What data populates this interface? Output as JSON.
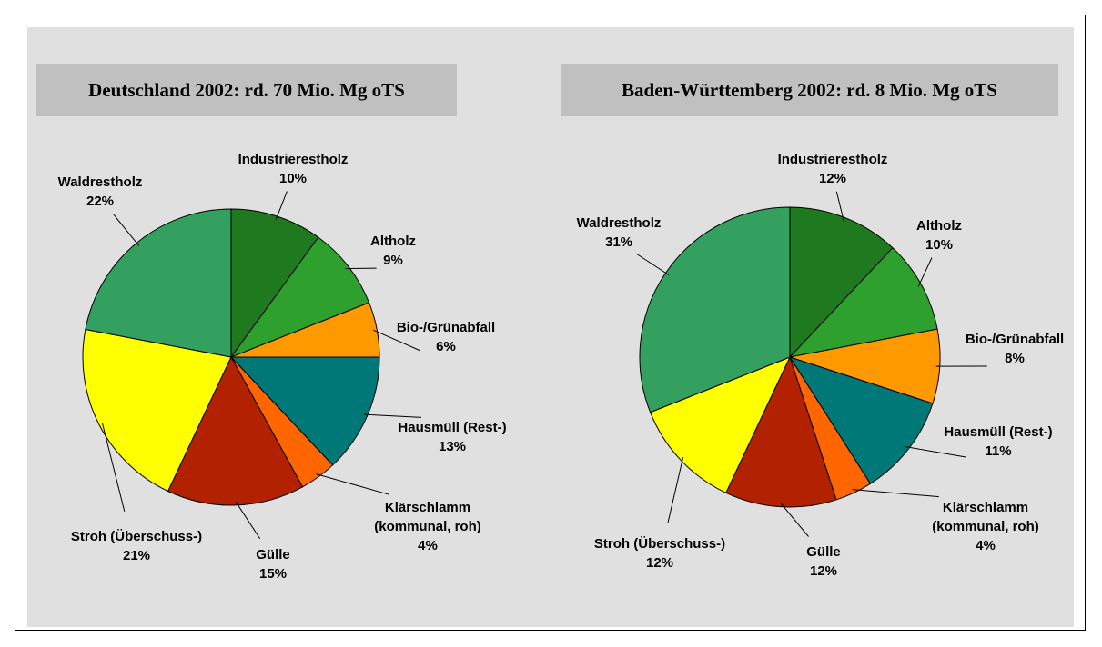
{
  "chart_data": [
    {
      "type": "pie",
      "title": "Deutschland 2002: rd. 70 Mio. Mg oTS",
      "categories": [
        "Industrierestholz",
        "Altholz",
        "Bio-/Grünabfall",
        "Hausmüll (Rest-)",
        "Klärschlamm (kommunal, roh)",
        "Gülle",
        "Stroh (Überschuss-)",
        "Waldrestholz"
      ],
      "values": [
        10,
        9,
        6,
        13,
        4,
        15,
        21,
        22
      ],
      "value_labels": [
        "10%",
        "9%",
        "6%",
        "13%",
        "4%",
        "15%",
        "21%",
        "22%"
      ],
      "colors": [
        "#1f7a1f",
        "#2ea02e",
        "#ff9900",
        "#007878",
        "#ff6600",
        "#b22200",
        "#ffff00",
        "#33a060"
      ]
    },
    {
      "type": "pie",
      "title": "Baden-Württemberg 2002: rd. 8 Mio. Mg oTS",
      "categories": [
        "Industrierestholz",
        "Altholz",
        "Bio-/Grünabfall",
        "Hausmüll (Rest-)",
        "Klärschlamm (kommunal, roh)",
        "Gülle",
        "Stroh (Überschuss-)",
        "Waldrestholz"
      ],
      "values": [
        12,
        10,
        8,
        11,
        4,
        12,
        12,
        31
      ],
      "value_labels": [
        "12%",
        "10%",
        "8%",
        "11%",
        "4%",
        "12%",
        "12%",
        "31%"
      ],
      "colors": [
        "#1f7a1f",
        "#2ea02e",
        "#ff9900",
        "#007878",
        "#ff6600",
        "#b22200",
        "#ffff00",
        "#33a060"
      ]
    }
  ]
}
